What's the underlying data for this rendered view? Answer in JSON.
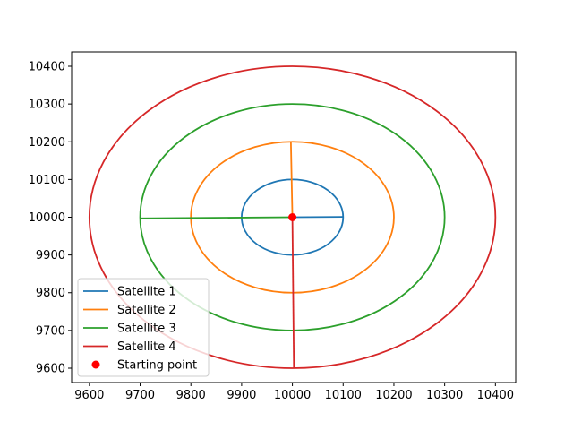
{
  "chart_data": {
    "type": "line",
    "title": "",
    "xlabel": "",
    "ylabel": "",
    "xlim": [
      9565,
      10440
    ],
    "ylim": [
      9562,
      10438
    ],
    "xticks": [
      9600,
      9700,
      9800,
      9900,
      10000,
      10100,
      10200,
      10300,
      10400
    ],
    "yticks": [
      9600,
      9700,
      9800,
      9900,
      10000,
      10100,
      10200,
      10300,
      10400
    ],
    "grid": false,
    "legend_position": "lower-left",
    "series": [
      {
        "name": "Satellite 1",
        "color": "#1f77b4",
        "center": [
          10000,
          10000
        ],
        "radius": 100,
        "spoke_end": [
          10100,
          10001
        ]
      },
      {
        "name": "Satellite 2",
        "color": "#ff7f0e",
        "center": [
          10000,
          10000
        ],
        "radius": 200,
        "spoke_end": [
          9997,
          10200
        ]
      },
      {
        "name": "Satellite 3",
        "color": "#2ca02c",
        "center": [
          10000,
          10000
        ],
        "radius": 300,
        "spoke_end": [
          9700,
          9997
        ]
      },
      {
        "name": "Satellite 4",
        "color": "#d62728",
        "center": [
          10000,
          10000
        ],
        "radius": 400,
        "spoke_end": [
          10003,
          9600
        ]
      }
    ],
    "points": [
      {
        "name": "Starting point",
        "x": 10000,
        "y": 10000,
        "color": "#ff0000"
      }
    ]
  }
}
